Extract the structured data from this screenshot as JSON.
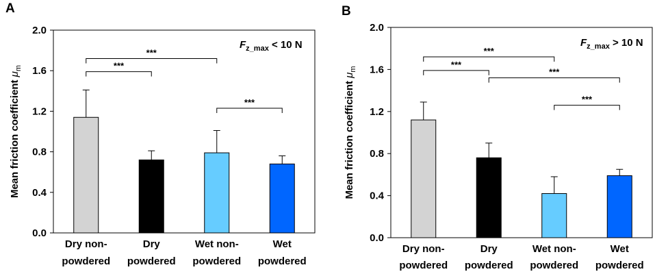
{
  "chart_data": [
    {
      "panel_label": "A",
      "type": "bar",
      "ylabel": "Mean friction coefficient",
      "ylabel_symbol": "μ",
      "ylabel_subscript": "m",
      "ylim": [
        0,
        2.0
      ],
      "yticks": [
        "0.0",
        "0.4",
        "0.8",
        "1.2",
        "1.6",
        "2.0"
      ],
      "yticks_values": [
        0,
        0.4,
        0.8,
        1.2,
        1.6,
        2.0
      ],
      "categories": [
        [
          "Dry non-",
          "powdered"
        ],
        [
          "Dry",
          "powdered"
        ],
        [
          "Wet non-",
          "powdered"
        ],
        [
          "Wet",
          "powdered"
        ]
      ],
      "values": [
        1.14,
        0.72,
        0.79,
        0.68
      ],
      "errors": [
        0.27,
        0.09,
        0.22,
        0.08
      ],
      "colors": [
        "#d3d3d3",
        "#000000",
        "#66ccff",
        "#0066ff"
      ],
      "annotation": {
        "var": "F",
        "sub": "z_max",
        "rel": " < 10 N"
      },
      "significance": [
        {
          "from": 0,
          "to": 2,
          "label": "***",
          "y": 1.72
        },
        {
          "from": 0,
          "to": 1,
          "label": "***",
          "y": 1.59
        },
        {
          "from": 2,
          "to": 3,
          "label": "***",
          "y": 1.23
        }
      ]
    },
    {
      "panel_label": "B",
      "type": "bar",
      "ylabel": "Mean friction coefficient",
      "ylabel_symbol": "μ",
      "ylabel_subscript": "m",
      "ylim": [
        0,
        2.0
      ],
      "yticks": [
        "0.0",
        "0.4",
        "0.8",
        "1.2",
        "1.6",
        "2.0"
      ],
      "yticks_values": [
        0,
        0.4,
        0.8,
        1.2,
        1.6,
        2.0
      ],
      "categories": [
        [
          "Dry non-",
          "powdered"
        ],
        [
          "Dry",
          "powdered"
        ],
        [
          "Wet non-",
          "powdered"
        ],
        [
          "Wet",
          "powdered"
        ]
      ],
      "values": [
        1.12,
        0.76,
        0.42,
        0.59
      ],
      "errors": [
        0.17,
        0.14,
        0.16,
        0.06
      ],
      "colors": [
        "#d3d3d3",
        "#000000",
        "#66ccff",
        "#0066ff"
      ],
      "annotation": {
        "var": "F",
        "sub": "z_max",
        "rel": " > 10 N"
      },
      "significance": [
        {
          "from": 0,
          "to": 2,
          "label": "***",
          "y": 1.72
        },
        {
          "from": 0,
          "to": 1,
          "label": "***",
          "y": 1.59
        },
        {
          "from": 1,
          "to": 3,
          "label": "***",
          "y": 1.52
        },
        {
          "from": 2,
          "to": 3,
          "label": "***",
          "y": 1.26
        }
      ]
    }
  ]
}
